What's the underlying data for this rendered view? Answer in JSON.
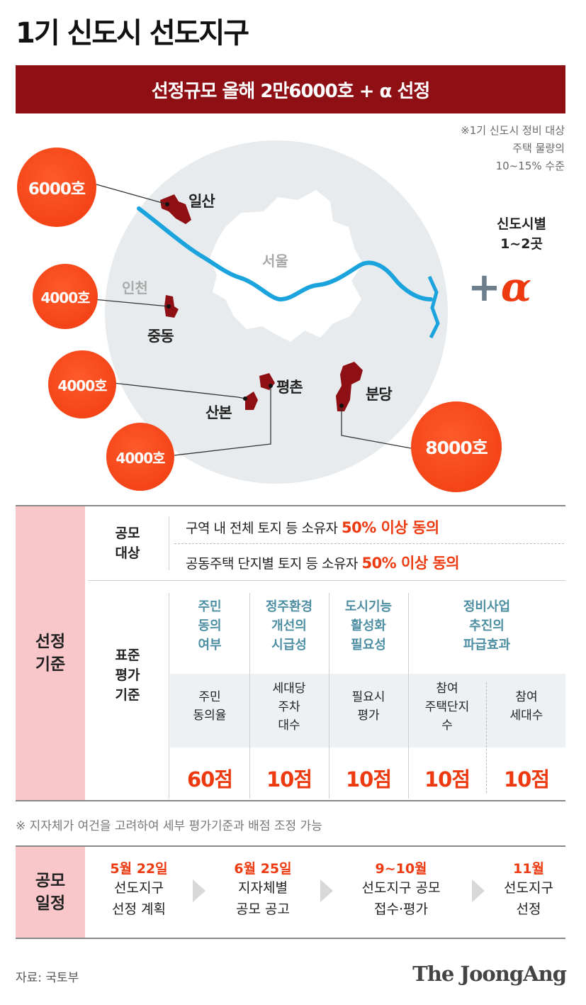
{
  "title": "1기 신도시 선도지구",
  "banner": "선정규모 올해 2만6000호 + α 선정",
  "note": [
    "※1기 신도시 정비 대상",
    "주택 물량의",
    "10~15% 수준"
  ],
  "map": {
    "seoul": "서울",
    "incheon": "인천",
    "cities": [
      {
        "name": "일산",
        "units": "6000호"
      },
      {
        "name": "중동",
        "units": "4000호"
      },
      {
        "name": "산본",
        "units": "4000호"
      },
      {
        "name": "평촌",
        "units": "4000호"
      },
      {
        "name": "분당",
        "units": "8000호"
      }
    ],
    "plus_note": [
      "신도시별",
      "1~2곳"
    ],
    "plus": "+",
    "alpha": "α"
  },
  "criteria": {
    "section_label": [
      "선정",
      "기준"
    ],
    "target_label": [
      "공모",
      "대상"
    ],
    "targets": [
      {
        "text": "구역 내 전체 토지 등 소유자 ",
        "highlight": "50% 이상 동의"
      },
      {
        "text": "공동주택 단지별 토지 등 소유자 ",
        "highlight": "50% 이상 동의"
      }
    ],
    "eval_label": [
      "표준",
      "평가",
      "기준"
    ],
    "columns": [
      {
        "criterion": [
          "주민",
          "동의",
          "여부"
        ],
        "subs": [
          {
            "label": [
              "주민",
              "동의율"
            ],
            "score": "60점"
          }
        ]
      },
      {
        "criterion": [
          "정주환경",
          "개선의",
          "시급성"
        ],
        "subs": [
          {
            "label": [
              "세대당",
              "주차",
              "대수"
            ],
            "score": "10점"
          }
        ]
      },
      {
        "criterion": [
          "도시기능",
          "활성화",
          "필요성"
        ],
        "subs": [
          {
            "label": [
              "필요시",
              "평가"
            ],
            "score": "10점"
          }
        ]
      },
      {
        "criterion": [
          "정비사업",
          "추진의",
          "파급효과"
        ],
        "subs": [
          {
            "label": [
              "참여",
              "주택단지",
              "수"
            ],
            "score": "10점"
          },
          {
            "label": [
              "참여",
              "세대수"
            ],
            "score": "10점"
          }
        ]
      }
    ]
  },
  "footnote": "※ 지자체가 여건을 고려하여 세부 평가기준과 배점 조정 가능",
  "schedule": {
    "label": [
      "공모",
      "일정"
    ],
    "steps": [
      {
        "date": "5월 22일",
        "text": [
          "선도지구",
          "선정 계획"
        ]
      },
      {
        "date": "6월 25일",
        "text": [
          "지자체별",
          "공모 공고"
        ]
      },
      {
        "date": "9~10월",
        "text": [
          "선도지구 공모",
          "접수·평가"
        ]
      },
      {
        "date": "11월",
        "text": [
          "선도지구",
          "선정"
        ]
      }
    ]
  },
  "source": "자료: 국토부",
  "logo": "The JoongAng",
  "colors": {
    "banner": "#8e1015",
    "accent": "#ee3a10",
    "river": "#1aa3dc",
    "side": "#f9c6c9",
    "criterion": "#4d8ea3"
  }
}
